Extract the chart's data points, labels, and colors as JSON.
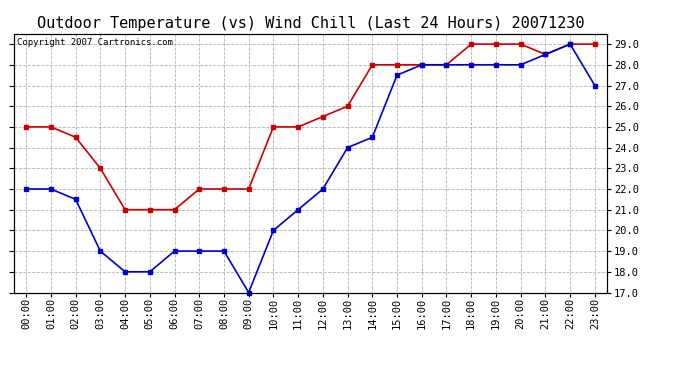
{
  "title": "Outdoor Temperature (vs) Wind Chill (Last 24 Hours) 20071230",
  "copyright": "Copyright 2007 Cartronics.com",
  "hours": [
    "00:00",
    "01:00",
    "02:00",
    "03:00",
    "04:00",
    "05:00",
    "06:00",
    "07:00",
    "08:00",
    "09:00",
    "10:00",
    "11:00",
    "12:00",
    "13:00",
    "14:00",
    "15:00",
    "16:00",
    "17:00",
    "18:00",
    "19:00",
    "20:00",
    "21:00",
    "22:00",
    "23:00"
  ],
  "temp": [
    25.0,
    25.0,
    24.5,
    23.0,
    21.0,
    21.0,
    21.0,
    22.0,
    22.0,
    22.0,
    25.0,
    25.0,
    25.5,
    26.0,
    28.0,
    28.0,
    28.0,
    28.0,
    29.0,
    29.0,
    29.0,
    28.5,
    29.0,
    29.0
  ],
  "wind_chill": [
    22.0,
    22.0,
    21.5,
    19.0,
    18.0,
    18.0,
    19.0,
    19.0,
    19.0,
    17.0,
    20.0,
    21.0,
    22.0,
    24.0,
    24.5,
    27.5,
    28.0,
    28.0,
    28.0,
    28.0,
    28.0,
    28.5,
    29.0,
    27.0
  ],
  "temp_color": "#cc0000",
  "wind_chill_color": "#0000cc",
  "bg_color": "#ffffff",
  "grid_color": "#aaaaaa",
  "ylim_min": 17.0,
  "ylim_max": 29.5,
  "yticks": [
    17.0,
    18.0,
    19.0,
    20.0,
    21.0,
    22.0,
    23.0,
    24.0,
    25.0,
    26.0,
    27.0,
    28.0,
    29.0
  ],
  "title_fontsize": 11,
  "copyright_fontsize": 6.5,
  "axis_fontsize": 7.5,
  "marker_size": 3.5,
  "line_width": 1.2
}
